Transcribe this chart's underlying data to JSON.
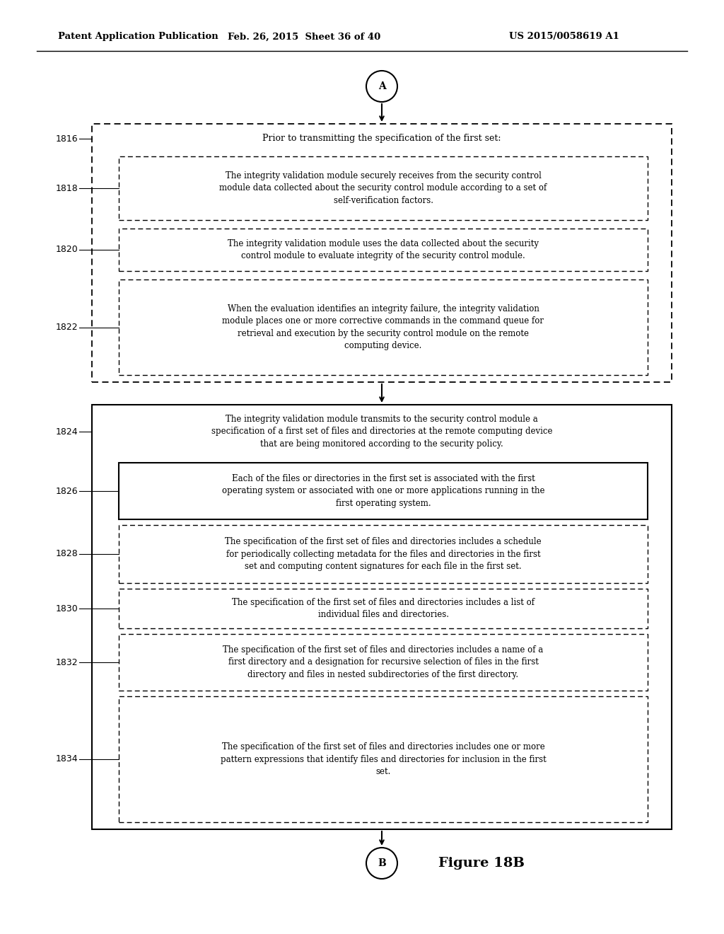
{
  "header_left": "Patent Application Publication",
  "header_mid": "Feb. 26, 2015  Sheet 36 of 40",
  "header_right": "US 2015/0058619 A1",
  "figure_label": "Figure 18B",
  "bg_color": "#ffffff",
  "box1816_text": "Prior to transmitting the specification of the first set:",
  "box1818_text": "The integrity validation module securely receives from the security control\nmodule data collected about the security control module according to a set of\nself-verification factors.",
  "box1820_text": "The integrity validation module uses the data collected about the security\ncontrol module to evaluate integrity of the security control module.",
  "box1822_text": "When the evaluation identifies an integrity failure, the integrity validation\nmodule places one or more corrective commands in the command queue for\nretrieval and execution by the security control module on the remote\ncomputing device.",
  "box1824_text": "The integrity validation module transmits to the security control module a\nspecification of a first set of files and directories at the remote computing device\nthat are being monitored according to the security policy.",
  "box1826_text": "Each of the files or directories in the first set is associated with the first\noperating system or associated with one or more applications running in the\nfirst operating system.",
  "box1828_text": "The specification of the first set of files and directories includes a schedule\nfor periodically collecting metadata for the files and directories in the first\nset and computing content signatures for each file in the first set.",
  "box1830_text": "The specification of the first set of files and directories includes a list of\nindividual files and directories.",
  "box1832_text": "The specification of the first set of files and directories includes a name of a\nfirst directory and a designation for recursive selection of files in the first\ndirectory and files in nested subdirectories of the first directory.",
  "box1834_text": "The specification of the first set of files and directories includes one or more\npattern expressions that identify files and directories for inclusion in the first\nset."
}
